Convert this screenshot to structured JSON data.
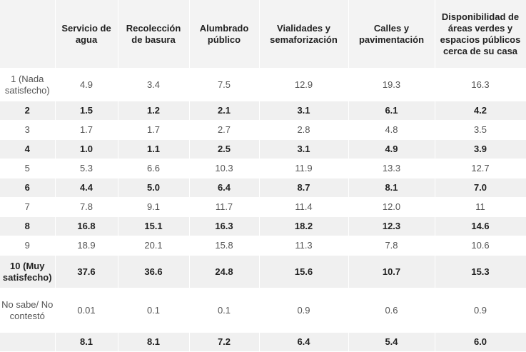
{
  "columns": [
    "",
    "Servicio de agua",
    "Recolección de basura",
    "Alumbrado público",
    "Vialidades y semaforización",
    "Calles y pavimentación",
    "Disponibilidad de áreas verdes y espacios públicos cerca de su casa"
  ],
  "rows": [
    {
      "label": "1 (Nada satisfecho)",
      "values": [
        "4.9",
        "3.4",
        "7.5",
        "12.9",
        "19.3",
        "16.3"
      ]
    },
    {
      "label": "2",
      "values": [
        "1.5",
        "1.2",
        "2.1",
        "3.1",
        "6.1",
        "4.2"
      ]
    },
    {
      "label": "3",
      "values": [
        "1.7",
        "1.7",
        "2.7",
        "2.8",
        "4.8",
        "3.5"
      ]
    },
    {
      "label": "4",
      "values": [
        "1.0",
        "1.1",
        "2.5",
        "3.1",
        "4.9",
        "3.9"
      ]
    },
    {
      "label": "5",
      "values": [
        "5.3",
        "6.6",
        "10.3",
        "11.9",
        "13.3",
        "12.7"
      ]
    },
    {
      "label": "6",
      "values": [
        "4.4",
        "5.0",
        "6.4",
        "8.7",
        "8.1",
        "7.0"
      ]
    },
    {
      "label": "7",
      "values": [
        "7.8",
        "9.1",
        "11.7",
        "11.4",
        "12.0",
        "11"
      ]
    },
    {
      "label": "8",
      "values": [
        "16.8",
        "15.1",
        "16.3",
        "18.2",
        "12.3",
        "14.6"
      ]
    },
    {
      "label": "9",
      "values": [
        "18.9",
        "20.1",
        "15.8",
        "11.3",
        "7.8",
        "10.6"
      ]
    },
    {
      "label": "10 (Muy satisfecho)",
      "values": [
        "37.6",
        "36.6",
        "24.8",
        "15.6",
        "10.7",
        "15.3"
      ]
    },
    {
      "label": "No sabe/ No contestó",
      "values": [
        "0.01",
        "0.1",
        "0.1",
        "0.9",
        "0.6",
        "0.9"
      ]
    },
    {
      "label": "",
      "values": [
        "8.1",
        "8.1",
        "7.2",
        "6.4",
        "5.4",
        "6.0"
      ]
    }
  ]
}
